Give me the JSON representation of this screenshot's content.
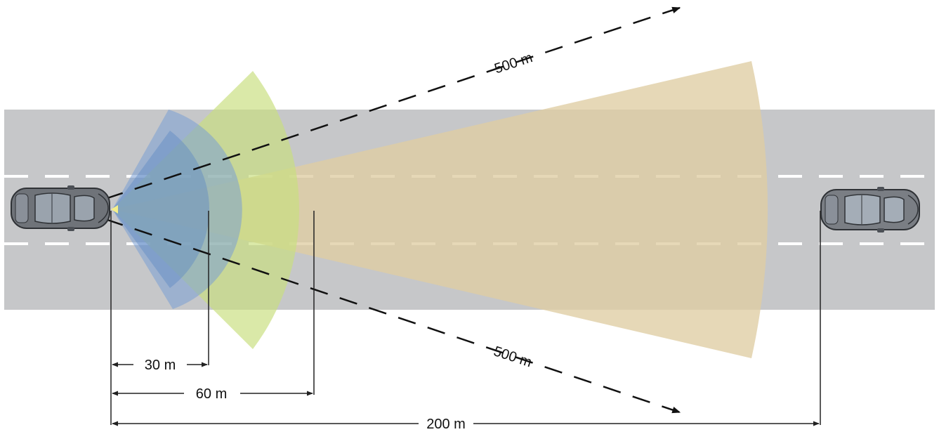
{
  "colors": {
    "road": "#c6c7c9",
    "lane_marking": "#ffffff",
    "short_range": "#7a9fd3",
    "short_range_inner": "#5f89c4",
    "mid_range": "#c8df7f",
    "long_range": "#dfcda3",
    "car_body": "#6f7379",
    "car_window": "#9aa3ad",
    "dim_line": "#222222"
  },
  "labels": {
    "beam_upper": "500 m",
    "beam_lower": "500 m",
    "dim_30": "30 m",
    "dim_60": "60 m",
    "dim_200": "200 m"
  },
  "icons": {
    "ego_vehicle": "car-top-view-icon",
    "target_vehicle": "car-top-view-icon"
  }
}
